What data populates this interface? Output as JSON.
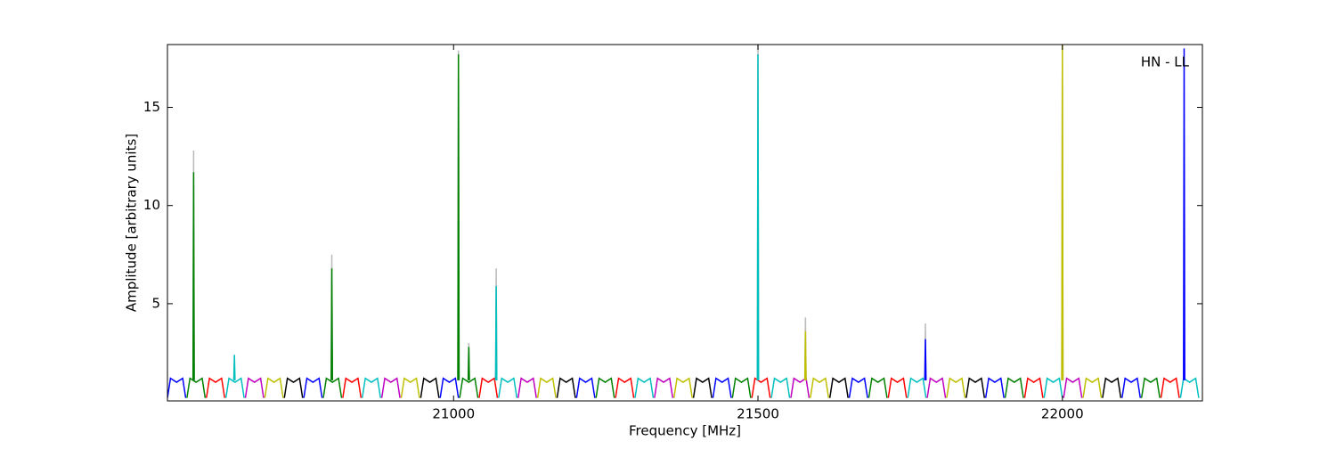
{
  "chart_data": {
    "type": "line",
    "annotation": "HN - LL",
    "x_label": "Frequency [MHz]",
    "y_label": "Amplitude [arbitrary units]",
    "xlim": [
      20530,
      22230
    ],
    "ylim": [
      0.05,
      18.2
    ],
    "xticks": [
      21000,
      21500,
      22000
    ],
    "yticks": [
      5,
      10,
      15
    ],
    "series": [
      {
        "color": "#0000ff",
        "x": [
          20530,
          20535,
          20545,
          20555,
          20560
        ],
        "values": [
          0.2,
          1.2,
          1.0,
          1.2,
          0.2
        ]
      },
      {
        "color": "#008000",
        "x": [
          20562,
          20567,
          20577,
          20587,
          20592
        ],
        "values": [
          0.2,
          1.2,
          1.0,
          1.2,
          0.2
        ]
      },
      {
        "color": "#ff0000",
        "x": [
          20594,
          20599,
          20609,
          20619,
          20624
        ],
        "values": [
          0.2,
          1.2,
          1.0,
          1.2,
          0.2
        ]
      },
      {
        "color": "#00bfbf",
        "x": [
          20626,
          20631,
          20641,
          20651,
          20656
        ],
        "values": [
          0.2,
          1.2,
          1.0,
          1.2,
          0.2
        ]
      },
      {
        "color": "#bf00bf",
        "x": [
          20658,
          20663,
          20673,
          20683,
          20688
        ],
        "values": [
          0.2,
          1.2,
          1.0,
          1.2,
          0.2
        ]
      },
      {
        "color": "#bfbf00",
        "x": [
          20690,
          20695,
          20705,
          20715,
          20720
        ],
        "values": [
          0.2,
          1.2,
          1.0,
          1.2,
          0.2
        ]
      },
      {
        "color": "#000000",
        "x": [
          20722,
          20727,
          20737,
          20747,
          20752
        ],
        "values": [
          0.2,
          1.2,
          1.0,
          1.2,
          0.2
        ]
      },
      {
        "color": "#0000ff",
        "x": [
          20754,
          20759,
          20769,
          20779,
          20784
        ],
        "values": [
          0.2,
          1.2,
          1.0,
          1.2,
          0.2
        ]
      },
      {
        "color": "#008000",
        "x": [
          20786,
          20791,
          20801,
          20811,
          20816
        ],
        "values": [
          0.2,
          1.2,
          1.0,
          1.2,
          0.2
        ]
      },
      {
        "color": "#ff0000",
        "x": [
          20818,
          20823,
          20833,
          20843,
          20848
        ],
        "values": [
          0.2,
          1.2,
          1.0,
          1.2,
          0.2
        ]
      },
      {
        "color": "#00bfbf",
        "x": [
          20850,
          20855,
          20865,
          20875,
          20880
        ],
        "values": [
          0.2,
          1.2,
          1.0,
          1.2,
          0.2
        ]
      },
      {
        "color": "#bf00bf",
        "x": [
          20882,
          20887,
          20897,
          20907,
          20912
        ],
        "values": [
          0.2,
          1.2,
          1.0,
          1.2,
          0.2
        ]
      },
      {
        "color": "#bfbf00",
        "x": [
          20914,
          20919,
          20929,
          20939,
          20944
        ],
        "values": [
          0.2,
          1.2,
          1.0,
          1.2,
          0.2
        ]
      },
      {
        "color": "#000000",
        "x": [
          20946,
          20951,
          20961,
          20971,
          20976
        ],
        "values": [
          0.2,
          1.2,
          1.0,
          1.2,
          0.2
        ]
      },
      {
        "color": "#0000ff",
        "x": [
          20978,
          20983,
          20993,
          21003,
          21008
        ],
        "values": [
          0.2,
          1.2,
          1.0,
          1.2,
          0.2
        ]
      },
      {
        "color": "#008000",
        "x": [
          21010,
          21015,
          21025,
          21035,
          21040
        ],
        "values": [
          0.2,
          1.2,
          1.0,
          1.2,
          0.2
        ]
      },
      {
        "color": "#ff0000",
        "x": [
          21042,
          21047,
          21057,
          21067,
          21072
        ],
        "values": [
          0.2,
          1.2,
          1.0,
          1.2,
          0.2
        ]
      },
      {
        "color": "#00bfbf",
        "x": [
          21074,
          21079,
          21089,
          21099,
          21104
        ],
        "values": [
          0.2,
          1.2,
          1.0,
          1.2,
          0.2
        ]
      },
      {
        "color": "#bf00bf",
        "x": [
          21106,
          21111,
          21121,
          21131,
          21136
        ],
        "values": [
          0.2,
          1.2,
          1.0,
          1.2,
          0.2
        ]
      },
      {
        "color": "#bfbf00",
        "x": [
          21138,
          21143,
          21153,
          21163,
          21168
        ],
        "values": [
          0.2,
          1.2,
          1.0,
          1.2,
          0.2
        ]
      },
      {
        "color": "#000000",
        "x": [
          21170,
          21175,
          21185,
          21195,
          21200
        ],
        "values": [
          0.2,
          1.2,
          1.0,
          1.2,
          0.2
        ]
      },
      {
        "color": "#0000ff",
        "x": [
          21202,
          21207,
          21217,
          21227,
          21232
        ],
        "values": [
          0.2,
          1.2,
          1.0,
          1.2,
          0.2
        ]
      },
      {
        "color": "#008000",
        "x": [
          21234,
          21239,
          21249,
          21259,
          21264
        ],
        "values": [
          0.2,
          1.2,
          1.0,
          1.2,
          0.2
        ]
      },
      {
        "color": "#ff0000",
        "x": [
          21266,
          21271,
          21281,
          21291,
          21296
        ],
        "values": [
          0.2,
          1.2,
          1.0,
          1.2,
          0.2
        ]
      },
      {
        "color": "#00bfbf",
        "x": [
          21298,
          21303,
          21313,
          21323,
          21328
        ],
        "values": [
          0.2,
          1.2,
          1.0,
          1.2,
          0.2
        ]
      },
      {
        "color": "#bf00bf",
        "x": [
          21330,
          21335,
          21345,
          21355,
          21360
        ],
        "values": [
          0.2,
          1.2,
          1.0,
          1.2,
          0.2
        ]
      },
      {
        "color": "#bfbf00",
        "x": [
          21362,
          21367,
          21377,
          21387,
          21392
        ],
        "values": [
          0.2,
          1.2,
          1.0,
          1.2,
          0.2
        ]
      },
      {
        "color": "#000000",
        "x": [
          21394,
          21399,
          21409,
          21419,
          21424
        ],
        "values": [
          0.2,
          1.2,
          1.0,
          1.2,
          0.2
        ]
      },
      {
        "color": "#0000ff",
        "x": [
          21426,
          21431,
          21441,
          21451,
          21456
        ],
        "values": [
          0.2,
          1.2,
          1.0,
          1.2,
          0.2
        ]
      },
      {
        "color": "#008000",
        "x": [
          21458,
          21463,
          21473,
          21483,
          21488
        ],
        "values": [
          0.2,
          1.2,
          1.0,
          1.2,
          0.2
        ]
      },
      {
        "color": "#ff0000",
        "x": [
          21490,
          21495,
          21505,
          21515,
          21520
        ],
        "values": [
          0.2,
          1.2,
          1.0,
          1.2,
          0.2
        ]
      },
      {
        "color": "#00bfbf",
        "x": [
          21522,
          21527,
          21537,
          21547,
          21552
        ],
        "values": [
          0.2,
          1.2,
          1.0,
          1.2,
          0.2
        ]
      },
      {
        "color": "#bf00bf",
        "x": [
          21554,
          21559,
          21569,
          21579,
          21584
        ],
        "values": [
          0.2,
          1.2,
          1.0,
          1.2,
          0.2
        ]
      },
      {
        "color": "#bfbf00",
        "x": [
          21586,
          21591,
          21601,
          21611,
          21616
        ],
        "values": [
          0.2,
          1.2,
          1.0,
          1.2,
          0.2
        ]
      },
      {
        "color": "#000000",
        "x": [
          21618,
          21623,
          21633,
          21643,
          21648
        ],
        "values": [
          0.2,
          1.2,
          1.0,
          1.2,
          0.2
        ]
      },
      {
        "color": "#0000ff",
        "x": [
          21650,
          21655,
          21665,
          21675,
          21680
        ],
        "values": [
          0.2,
          1.2,
          1.0,
          1.2,
          0.2
        ]
      },
      {
        "color": "#008000",
        "x": [
          21682,
          21687,
          21697,
          21707,
          21712
        ],
        "values": [
          0.2,
          1.2,
          1.0,
          1.2,
          0.2
        ]
      },
      {
        "color": "#ff0000",
        "x": [
          21714,
          21719,
          21729,
          21739,
          21744
        ],
        "values": [
          0.2,
          1.2,
          1.0,
          1.2,
          0.2
        ]
      },
      {
        "color": "#00bfbf",
        "x": [
          21746,
          21751,
          21761,
          21771,
          21776
        ],
        "values": [
          0.2,
          1.2,
          1.0,
          1.2,
          0.2
        ]
      },
      {
        "color": "#bf00bf",
        "x": [
          21778,
          21783,
          21793,
          21803,
          21808
        ],
        "values": [
          0.2,
          1.2,
          1.0,
          1.2,
          0.2
        ]
      },
      {
        "color": "#bfbf00",
        "x": [
          21810,
          21815,
          21825,
          21835,
          21840
        ],
        "values": [
          0.2,
          1.2,
          1.0,
          1.2,
          0.2
        ]
      },
      {
        "color": "#000000",
        "x": [
          21842,
          21847,
          21857,
          21867,
          21872
        ],
        "values": [
          0.2,
          1.2,
          1.0,
          1.2,
          0.2
        ]
      },
      {
        "color": "#0000ff",
        "x": [
          21874,
          21879,
          21889,
          21899,
          21904
        ],
        "values": [
          0.2,
          1.2,
          1.0,
          1.2,
          0.2
        ]
      },
      {
        "color": "#008000",
        "x": [
          21906,
          21911,
          21921,
          21931,
          21936
        ],
        "values": [
          0.2,
          1.2,
          1.0,
          1.2,
          0.2
        ]
      },
      {
        "color": "#ff0000",
        "x": [
          21938,
          21943,
          21953,
          21963,
          21968
        ],
        "values": [
          0.2,
          1.2,
          1.0,
          1.2,
          0.2
        ]
      },
      {
        "color": "#00bfbf",
        "x": [
          21970,
          21975,
          21985,
          21995,
          22000
        ],
        "values": [
          0.2,
          1.2,
          1.0,
          1.2,
          0.2
        ]
      },
      {
        "color": "#bf00bf",
        "x": [
          22002,
          22007,
          22017,
          22027,
          22032
        ],
        "values": [
          0.2,
          1.2,
          1.0,
          1.2,
          0.2
        ]
      },
      {
        "color": "#bfbf00",
        "x": [
          22034,
          22039,
          22049,
          22059,
          22064
        ],
        "values": [
          0.2,
          1.2,
          1.0,
          1.2,
          0.2
        ]
      },
      {
        "color": "#000000",
        "x": [
          22066,
          22071,
          22081,
          22091,
          22096
        ],
        "values": [
          0.2,
          1.2,
          1.0,
          1.2,
          0.2
        ]
      },
      {
        "color": "#0000ff",
        "x": [
          22098,
          22103,
          22113,
          22123,
          22128
        ],
        "values": [
          0.2,
          1.2,
          1.0,
          1.2,
          0.2
        ]
      },
      {
        "color": "#008000",
        "x": [
          22130,
          22135,
          22145,
          22155,
          22160
        ],
        "values": [
          0.2,
          1.2,
          1.0,
          1.2,
          0.2
        ]
      },
      {
        "color": "#ff0000",
        "x": [
          22162,
          22167,
          22177,
          22187,
          22192
        ],
        "values": [
          0.2,
          1.2,
          1.0,
          1.2,
          0.2
        ]
      },
      {
        "color": "#00bfbf",
        "x": [
          22194,
          22199,
          22209,
          22219,
          22224
        ],
        "values": [
          0.2,
          1.2,
          1.0,
          1.2,
          0.2
        ]
      },
      {
        "color": "#bbbbbb",
        "x": [
          20572,
          20573,
          20574
        ],
        "values": [
          1.1,
          12.8,
          1.1
        ]
      },
      {
        "color": "#bbbbbb",
        "x": [
          20799,
          20800,
          20801
        ],
        "values": [
          1.1,
          7.5,
          1.1
        ]
      },
      {
        "color": "#bbbbbb",
        "x": [
          21007,
          21008,
          21009
        ],
        "values": [
          1.1,
          17.9,
          1.1
        ]
      },
      {
        "color": "#bbbbbb",
        "x": [
          21024,
          21025,
          21026
        ],
        "values": [
          1.1,
          3.0,
          1.1
        ]
      },
      {
        "color": "#bbbbbb",
        "x": [
          21069,
          21070,
          21071
        ],
        "values": [
          1.1,
          6.8,
          1.1
        ]
      },
      {
        "color": "#bbbbbb",
        "x": [
          21499,
          21500,
          21501
        ],
        "values": [
          1.1,
          18.2,
          1.1
        ]
      },
      {
        "color": "#bbbbbb",
        "x": [
          21577,
          21578,
          21579
        ],
        "values": [
          1.1,
          4.3,
          1.1
        ]
      },
      {
        "color": "#bbbbbb",
        "x": [
          21774,
          21775,
          21776
        ],
        "values": [
          1.1,
          4.0,
          1.1
        ]
      },
      {
        "color": "#bbbbbb",
        "x": [
          21999,
          22000,
          22001
        ],
        "values": [
          1.1,
          18.2,
          1.1
        ]
      },
      {
        "color": "#008000",
        "x": [
          20572,
          20573,
          20574
        ],
        "values": [
          1.1,
          11.7,
          1.1
        ]
      },
      {
        "color": "#00bfbf",
        "x": [
          20639,
          20640,
          20641
        ],
        "values": [
          1.1,
          2.4,
          1.1
        ]
      },
      {
        "color": "#008000",
        "x": [
          20799,
          20800,
          20801
        ],
        "values": [
          1.1,
          6.8,
          1.1
        ]
      },
      {
        "color": "#008000",
        "x": [
          21007,
          21008,
          21009
        ],
        "values": [
          1.1,
          17.7,
          1.1
        ]
      },
      {
        "color": "#008000",
        "x": [
          21024,
          21025,
          21026
        ],
        "values": [
          1.1,
          2.8,
          1.1
        ]
      },
      {
        "color": "#00bfbf",
        "x": [
          21069,
          21070,
          21071
        ],
        "values": [
          1.1,
          5.9,
          1.1
        ]
      },
      {
        "color": "#00bfbf",
        "x": [
          21499,
          21500,
          21501
        ],
        "values": [
          1.1,
          17.7,
          1.1
        ]
      },
      {
        "color": "#bfbf00",
        "x": [
          21577,
          21578,
          21579
        ],
        "values": [
          1.1,
          3.6,
          1.1
        ]
      },
      {
        "color": "#0000ff",
        "x": [
          21774,
          21775,
          21776
        ],
        "values": [
          1.1,
          3.2,
          1.1
        ]
      },
      {
        "color": "#bfbf00",
        "x": [
          21999,
          22000,
          22001
        ],
        "values": [
          1.1,
          18.2,
          1.1
        ]
      },
      {
        "color": "#0000ff",
        "x": [
          22199,
          22200,
          22201
        ],
        "values": [
          1.1,
          18.0,
          1.1
        ]
      }
    ]
  }
}
